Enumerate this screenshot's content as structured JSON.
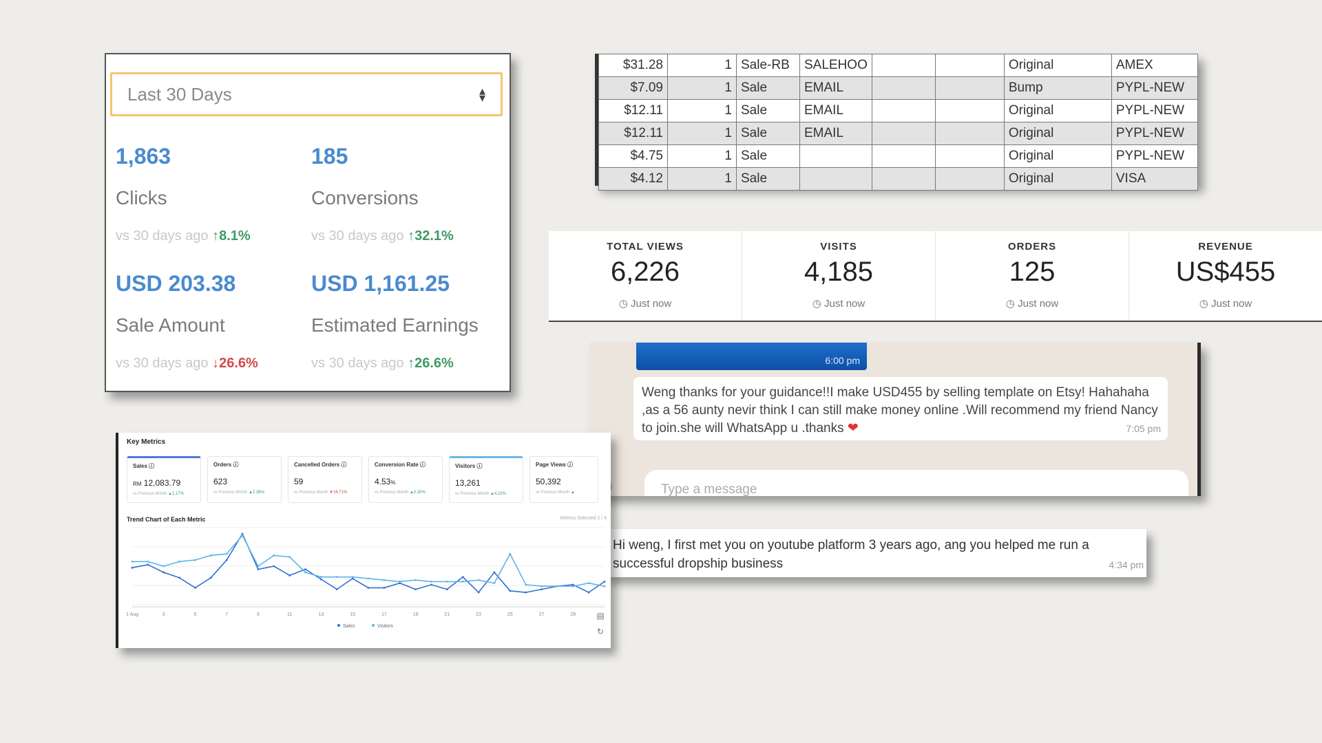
{
  "affiliate": {
    "range": "Last 30 Days",
    "stats": [
      {
        "value": "1,863",
        "label": "Clicks",
        "compare": "vs 30 days ago",
        "change": "8.1%",
        "dir": "up"
      },
      {
        "value": "185",
        "label": "Conversions",
        "compare": "vs 30 days ago",
        "change": "32.1%",
        "dir": "up"
      },
      {
        "value": "USD 203.38",
        "label": "Sale Amount",
        "compare": "vs 30 days ago",
        "change": "26.6%",
        "dir": "down"
      },
      {
        "value": "USD 1,161.25",
        "label": "Estimated Earnings",
        "compare": "vs 30 days ago",
        "change": "26.6%",
        "dir": "up"
      }
    ]
  },
  "orders_table": {
    "rows": [
      [
        "$31.28",
        "1",
        "Sale-RB",
        "SALEHOO",
        "",
        "",
        "Original",
        "AMEX"
      ],
      [
        "$7.09",
        "1",
        "Sale",
        "EMAIL",
        "",
        "",
        "Bump",
        "PYPL-NEW"
      ],
      [
        "$12.11",
        "1",
        "Sale",
        "EMAIL",
        "",
        "",
        "Original",
        "PYPL-NEW"
      ],
      [
        "$12.11",
        "1",
        "Sale",
        "EMAIL",
        "",
        "",
        "Original",
        "PYPL-NEW"
      ],
      [
        "$4.75",
        "1",
        "Sale",
        "",
        "",
        "",
        "Original",
        "PYPL-NEW"
      ],
      [
        "$4.12",
        "1",
        "Sale",
        "",
        "",
        "",
        "Original",
        "VISA"
      ]
    ]
  },
  "etsy": {
    "stats": [
      {
        "label": "TOTAL VIEWS",
        "value": "6,226",
        "time": "Just now"
      },
      {
        "label": "VISITS",
        "value": "4,185",
        "time": "Just now"
      },
      {
        "label": "ORDERS",
        "value": "125",
        "time": "Just now"
      },
      {
        "label": "REVENUE",
        "value": "US$455",
        "time": "Just now"
      }
    ]
  },
  "whatsapp": {
    "prev_time": "6:00 pm",
    "message": "Weng thanks for your guidance!!I make USD455 by selling template on Etsy! Hahahaha ,as a 56 aunty nevir think I can still make money online .Will recommend my friend Nancy to join.she will WhatsApp u .thanks",
    "heart": "❤",
    "time": "7:05 pm",
    "input_placeholder": "Type a message",
    "attach_icon": "paperclip-icon"
  },
  "comment": {
    "text": "Hi weng, I first met you on youtube platform 3 years ago, ang you helped me run a successful dropship business",
    "time": "4:34 pm"
  },
  "metrics": {
    "title": "Key Metrics",
    "cards": [
      {
        "label": "Sales",
        "prefix": "RM",
        "value": "12,083.79",
        "compare": "vs Previous Month",
        "change": "▲1.17%",
        "dir": "up"
      },
      {
        "label": "Orders",
        "prefix": "",
        "value": "623",
        "compare": "vs Previous Month",
        "change": "▲2.38%",
        "dir": "up"
      },
      {
        "label": "Cancelled Orders",
        "prefix": "",
        "value": "59",
        "compare": "vs Previous Month",
        "change": "▼16.71%",
        "dir": "down"
      },
      {
        "label": "Conversion Rate",
        "prefix": "",
        "value": "4.53",
        "suffix": "%",
        "compare": "vs Previous Month",
        "change": "▲0.30%",
        "dir": "up"
      },
      {
        "label": "Visitors",
        "prefix": "",
        "value": "13,261",
        "compare": "vs Previous Month",
        "change": "▲4.22%",
        "dir": "up"
      },
      {
        "label": "Page Views",
        "prefix": "",
        "value": "50,392",
        "compare": "vs Previous Month",
        "change": "▲",
        "dir": "up"
      }
    ],
    "trend_title": "Trend Chart of Each Metric",
    "metrics_selected": "Metrics Selected 2 / 4"
  },
  "chart_data": {
    "type": "line",
    "x": [
      "1 Aug",
      "2",
      "3",
      "4",
      "5",
      "6",
      "7",
      "8",
      "9",
      "10",
      "11",
      "12",
      "13",
      "14",
      "15",
      "16",
      "17",
      "18",
      "19",
      "20",
      "21",
      "22",
      "23",
      "24",
      "25",
      "26",
      "27",
      "28",
      "29",
      "30",
      "31"
    ],
    "tick_labels": [
      "1 Aug",
      "3",
      "5",
      "7",
      "9",
      "11",
      "13",
      "15",
      "17",
      "19",
      "21",
      "23",
      "25",
      "27",
      "29"
    ],
    "series": [
      {
        "name": "Sales",
        "color": "#2f6fd1",
        "values": [
          48,
          52,
          42,
          35,
          22,
          35,
          58,
          92,
          46,
          50,
          38,
          46,
          33,
          20,
          34,
          22,
          22,
          28,
          20,
          26,
          20,
          36,
          16,
          42,
          18,
          16,
          20,
          24,
          26,
          16,
          30
        ]
      },
      {
        "name": "Visitors",
        "color": "#5db4e6",
        "values": [
          56,
          56,
          50,
          56,
          58,
          64,
          66,
          90,
          50,
          64,
          62,
          42,
          36,
          36,
          36,
          34,
          32,
          30,
          32,
          30,
          30,
          30,
          32,
          28,
          66,
          26,
          24,
          24,
          24,
          28,
          24
        ]
      }
    ],
    "ylim": [
      0,
      100
    ],
    "grid": true,
    "legend": "bottom-center"
  }
}
